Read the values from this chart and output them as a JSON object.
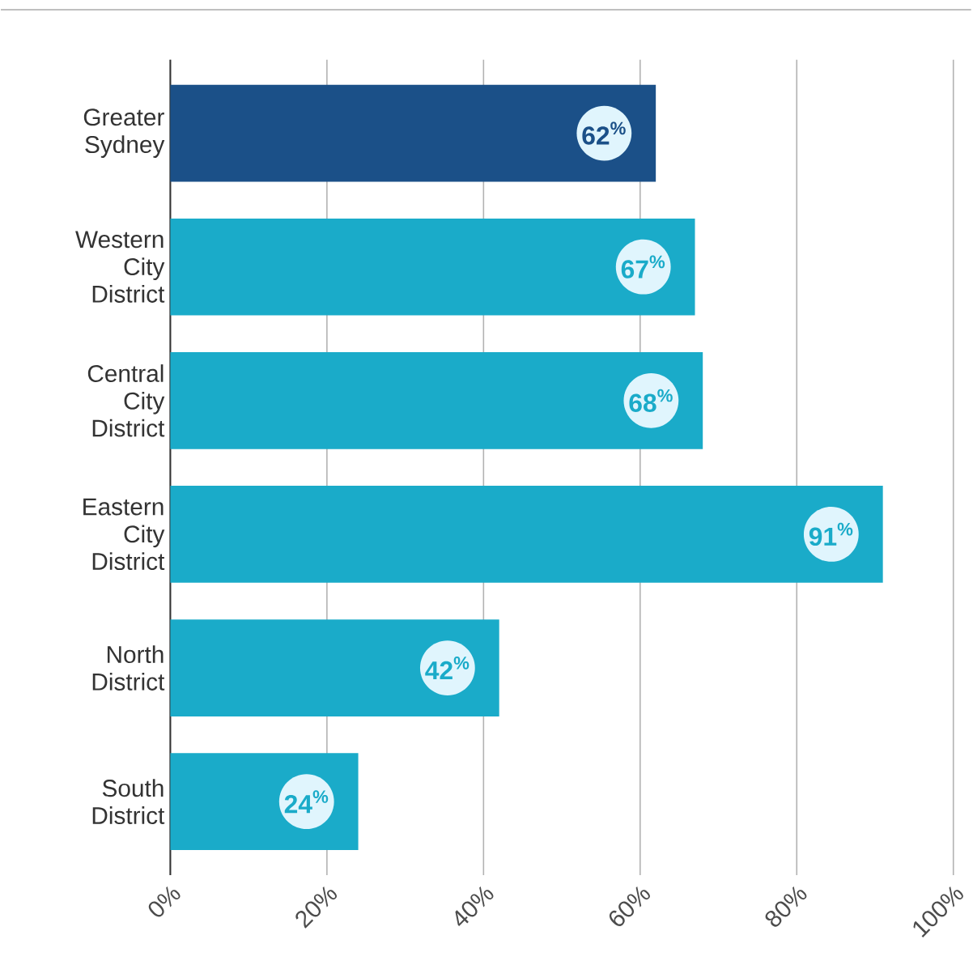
{
  "chart_data": {
    "type": "bar",
    "orientation": "horizontal",
    "categories": [
      "Greater Sydney",
      "Western City District",
      "Central City District",
      "Eastern City District",
      "North District",
      "South District"
    ],
    "values": [
      62,
      67,
      68,
      91,
      42,
      24
    ],
    "colors": [
      "#1b5088",
      "#1aabc9",
      "#1aabc9",
      "#1aabc9",
      "#1aabc9",
      "#1aabc9"
    ],
    "value_labels": [
      "62$^{%}$",
      "67$^{%}$",
      "68$^{%}$",
      "91$^{%}$",
      "42$^{%}$",
      "24$^{%}$"
    ],
    "xlim": [
      0,
      100
    ],
    "xticks": [
      {
        "value": 0,
        "label": "0%"
      },
      {
        "value": 20,
        "label": "20%"
      },
      {
        "value": 40,
        "label": "40%"
      },
      {
        "value": 60,
        "label": "60%"
      },
      {
        "value": 80,
        "label": "80%"
      },
      {
        "value": 100,
        "label": "100%"
      }
    ],
    "grid": "x"
  }
}
